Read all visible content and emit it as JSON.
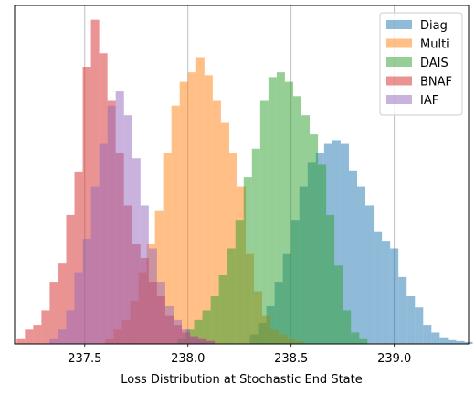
{
  "chart_data": {
    "type": "histogram",
    "title": "",
    "xlabel": "Loss Distribution at Stochastic End State",
    "ylabel": "",
    "xlim": [
      237.16,
      239.36
    ],
    "ylim": [
      0,
      355
    ],
    "xticks": [
      237.5,
      238.0,
      238.5,
      239.0
    ],
    "xtick_labels": [
      "237.5",
      "238.0",
      "238.5",
      "239.0"
    ],
    "grid": "vertical",
    "legend_position": "top-right",
    "bin_width": 0.04,
    "series": [
      {
        "name": "Diag",
        "color": "#1f77b4",
        "alpha": 0.5,
        "bins_start": 238.3,
        "counts": [
          10,
          22,
          40,
          65,
          95,
          130,
          165,
          190,
          200,
          210,
          213,
          210,
          182,
          165,
          145,
          118,
          108,
          100,
          70,
          50,
          38,
          20,
          12,
          6,
          4,
          3,
          2
        ]
      },
      {
        "name": "Multi",
        "color": "#ff7f0e",
        "alpha": 0.5,
        "bins_start": 237.6,
        "counts": [
          5,
          15,
          25,
          45,
          75,
          105,
          140,
          200,
          250,
          275,
          285,
          300,
          282,
          255,
          232,
          200,
          165,
          95,
          55,
          30,
          15,
          10,
          5,
          3
        ]
      },
      {
        "name": "DAIS",
        "color": "#2ca02c",
        "alpha": 0.5,
        "bins_start": 237.95,
        "counts": [
          5,
          15,
          25,
          35,
          50,
          72,
          100,
          130,
          175,
          205,
          255,
          280,
          285,
          275,
          260,
          240,
          220,
          188,
          135,
          82,
          35,
          12,
          5
        ]
      },
      {
        "name": "BNAF",
        "color": "#d62728",
        "alpha": 0.5,
        "bins_start": 237.17,
        "counts": [
          5,
          15,
          20,
          35,
          65,
          85,
          135,
          180,
          290,
          340,
          305,
          255,
          200,
          145,
          105,
          90,
          65,
          50,
          30,
          20,
          12,
          8,
          5,
          3
        ]
      },
      {
        "name": "IAF",
        "color": "#9467bd",
        "alpha": 0.5,
        "bins_start": 237.33,
        "counts": [
          5,
          15,
          35,
          75,
          110,
          165,
          210,
          250,
          265,
          240,
          195,
          145,
          100,
          65,
          40,
          25,
          15,
          8,
          5,
          3
        ]
      }
    ]
  }
}
